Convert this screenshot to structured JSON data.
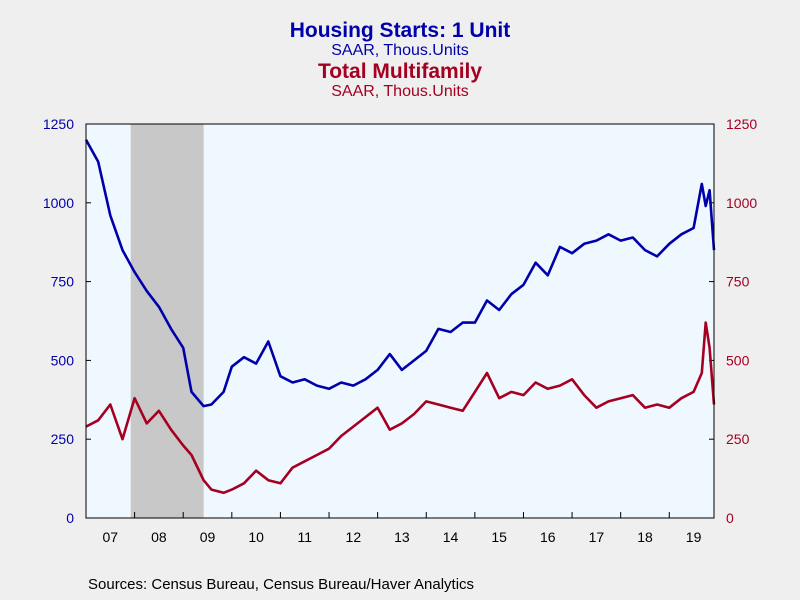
{
  "titles": {
    "series1_title": "Housing Starts: 1 Unit",
    "series1_subtitle": "SAAR, Thous.Units",
    "series2_title": "Total Multifamily",
    "series2_subtitle": "SAAR, Thous.Units"
  },
  "source": "Sources:  Census Bureau, Census Bureau/Haver Analytics",
  "colors": {
    "series1": "#0000aa",
    "series2": "#a50021",
    "plot_bg": "#f0f8ff",
    "page_bg": "#efefef",
    "recession": "#c8c8c8"
  },
  "chart_data": {
    "type": "line",
    "x_range": [
      2007.0,
      2019.92
    ],
    "y_left_range": [
      0,
      1250
    ],
    "y_right_range": [
      0,
      1250
    ],
    "y_ticks": [
      0,
      250,
      500,
      750,
      1000,
      1250
    ],
    "x_tick_labels": [
      "07",
      "08",
      "09",
      "10",
      "11",
      "12",
      "13",
      "14",
      "15",
      "16",
      "17",
      "18",
      "19"
    ],
    "grid": false,
    "recession_shading": [
      [
        2007.92,
        2009.42
      ]
    ],
    "series": [
      {
        "name": "Housing Starts: 1 Unit",
        "axis": "left",
        "color": "#0000aa",
        "x": [
          2007.0,
          2007.25,
          2007.5,
          2007.75,
          2008.0,
          2008.25,
          2008.5,
          2008.75,
          2009.0,
          2009.17,
          2009.42,
          2009.58,
          2009.83,
          2010.0,
          2010.25,
          2010.5,
          2010.75,
          2011.0,
          2011.25,
          2011.5,
          2011.75,
          2012.0,
          2012.25,
          2012.5,
          2012.75,
          2013.0,
          2013.25,
          2013.5,
          2013.75,
          2014.0,
          2014.25,
          2014.5,
          2014.75,
          2015.0,
          2015.25,
          2015.5,
          2015.75,
          2016.0,
          2016.25,
          2016.5,
          2016.75,
          2017.0,
          2017.25,
          2017.5,
          2017.75,
          2018.0,
          2018.25,
          2018.5,
          2018.75,
          2019.0,
          2019.25,
          2019.5,
          2019.67,
          2019.75,
          2019.83,
          2019.92
        ],
        "values": [
          1200,
          1130,
          960,
          850,
          780,
          720,
          670,
          600,
          540,
          400,
          355,
          360,
          400,
          480,
          510,
          490,
          560,
          450,
          430,
          440,
          420,
          410,
          430,
          420,
          440,
          470,
          520,
          470,
          500,
          530,
          600,
          590,
          620,
          620,
          690,
          660,
          710,
          740,
          810,
          770,
          860,
          840,
          870,
          880,
          900,
          880,
          890,
          850,
          830,
          870,
          900,
          920,
          1060,
          990,
          1040,
          850
        ]
      },
      {
        "name": "Total Multifamily",
        "axis": "right",
        "color": "#a50021",
        "x": [
          2007.0,
          2007.25,
          2007.5,
          2007.75,
          2008.0,
          2008.25,
          2008.5,
          2008.75,
          2009.0,
          2009.17,
          2009.42,
          2009.58,
          2009.83,
          2010.0,
          2010.25,
          2010.5,
          2010.75,
          2011.0,
          2011.25,
          2011.5,
          2011.75,
          2012.0,
          2012.25,
          2012.5,
          2012.75,
          2013.0,
          2013.25,
          2013.5,
          2013.75,
          2014.0,
          2014.25,
          2014.5,
          2014.75,
          2015.0,
          2015.25,
          2015.5,
          2015.75,
          2016.0,
          2016.25,
          2016.5,
          2016.75,
          2017.0,
          2017.25,
          2017.5,
          2017.75,
          2018.0,
          2018.25,
          2018.5,
          2018.75,
          2019.0,
          2019.25,
          2019.5,
          2019.67,
          2019.75,
          2019.83,
          2019.92
        ],
        "values": [
          290,
          310,
          360,
          250,
          380,
          300,
          340,
          280,
          230,
          200,
          120,
          90,
          80,
          90,
          110,
          150,
          120,
          110,
          160,
          180,
          200,
          220,
          260,
          290,
          320,
          350,
          280,
          300,
          330,
          370,
          360,
          350,
          340,
          400,
          460,
          380,
          400,
          390,
          430,
          410,
          420,
          440,
          390,
          350,
          370,
          380,
          390,
          350,
          360,
          350,
          380,
          400,
          460,
          620,
          540,
          360
        ]
      }
    ]
  }
}
